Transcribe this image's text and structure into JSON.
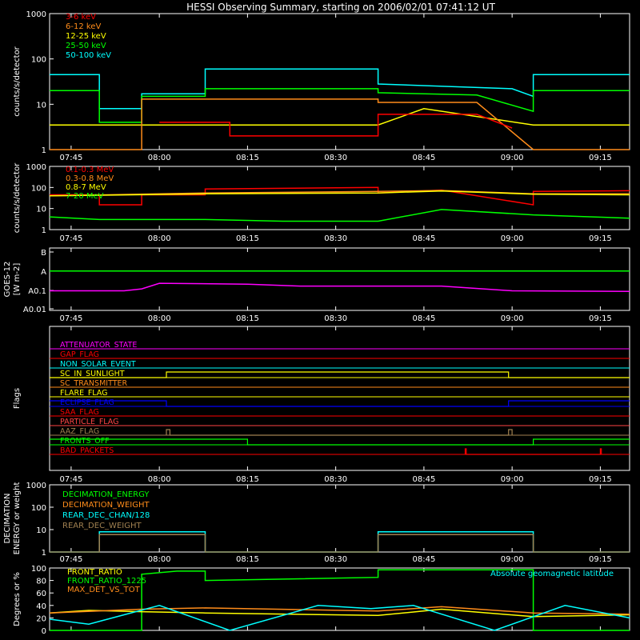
{
  "title": "HESSI Observing Summary, starting on 2006/02/01 07:41:12 UT",
  "time_ticks": [
    "07:45",
    "08:00",
    "08:15",
    "08:30",
    "08:45",
    "09:00",
    "09:15"
  ],
  "chart_data": [
    {
      "id": "lowE",
      "type": "line",
      "ylabel": "counts/s/detector",
      "yscale": "log",
      "ylim": [
        1,
        1000
      ],
      "ytick_labels": [
        "1",
        "10",
        "100",
        "1000"
      ],
      "legend": [
        {
          "name": "3-6 keV",
          "color": "#ff0000"
        },
        {
          "name": "6-12 keV",
          "color": "#ff8c1a"
        },
        {
          "name": "12-25 keV",
          "color": "#ffff00"
        },
        {
          "name": "25-50 keV",
          "color": "#00ff00"
        },
        {
          "name": "50-100 keV",
          "color": "#00ffff"
        }
      ],
      "series": [
        {
          "name": "50-100 keV",
          "color": "#00ffff",
          "x": [
            7.689,
            7.83,
            7.83,
            7.95,
            7.95,
            8.13,
            8.13,
            8.62,
            8.62,
            9.0,
            9.06,
            9.06,
            9.333
          ],
          "y": [
            45,
            45,
            8,
            8,
            17,
            17,
            60,
            60,
            28,
            22,
            15,
            45,
            45
          ]
        },
        {
          "name": "25-50 keV",
          "color": "#00ff00",
          "x": [
            7.689,
            7.83,
            7.83,
            7.95,
            7.95,
            8.13,
            8.13,
            8.62,
            8.62,
            8.9,
            9.06,
            9.06,
            9.333
          ],
          "y": [
            20,
            20,
            4,
            4,
            15,
            15,
            22,
            22,
            18,
            16,
            7,
            20,
            20
          ]
        },
        {
          "name": "12-25 keV",
          "color": "#ffff00",
          "x": [
            7.689,
            7.79,
            7.79,
            8.62,
            8.75,
            9.06,
            9.333
          ],
          "y": [
            3.5,
            3.5,
            3.5,
            3.5,
            8,
            3.5,
            3.5
          ]
        },
        {
          "name": "6-12 keV",
          "color": "#ff8c1a",
          "x": [
            7.689,
            7.83,
            7.83,
            7.95,
            7.95,
            8.13,
            8.13,
            8.62,
            8.62,
            8.9,
            9.06,
            9.06,
            9.333
          ],
          "y": [
            1,
            1,
            1,
            1,
            13,
            13,
            13,
            13,
            11,
            11,
            1,
            1,
            1
          ]
        },
        {
          "name": "3-6 keV",
          "color": "#ff0000",
          "x": [
            8.0,
            8.2,
            8.2,
            8.62,
            8.62,
            8.9,
            9.0
          ],
          "y": [
            4,
            4,
            2,
            2,
            6,
            6,
            3
          ]
        }
      ]
    },
    {
      "id": "highE",
      "type": "line",
      "ylabel": "counts/s/detector",
      "yscale": "log",
      "ylim": [
        1,
        1000
      ],
      "ytick_labels": [
        "1",
        "10",
        "100",
        "1000"
      ],
      "legend": [
        {
          "name": "0.1-0.3 MeV",
          "color": "#ff0000"
        },
        {
          "name": "0.3-0.8 MeV",
          "color": "#ff8c1a"
        },
        {
          "name": "0.8-7 MeV",
          "color": "#ffff00"
        },
        {
          "name": "7-20 MeV",
          "color": "#00ff00"
        }
      ],
      "series": [
        {
          "name": "0.1-0.3 MeV",
          "color": "#ff0000",
          "x": [
            7.689,
            7.83,
            7.83,
            7.95,
            7.95,
            8.13,
            8.13,
            8.62,
            8.62,
            8.8,
            9.06,
            9.06,
            9.333
          ],
          "y": [
            45,
            45,
            15,
            15,
            45,
            45,
            85,
            100,
            55,
            75,
            15,
            65,
            70
          ]
        },
        {
          "name": "0.3-0.8 MeV",
          "color": "#ff8c1a",
          "x": [
            7.689,
            8.13,
            8.62,
            8.8,
            9.06,
            9.333
          ],
          "y": [
            40,
            55,
            65,
            72,
            50,
            50
          ]
        },
        {
          "name": "0.8-7 MeV",
          "color": "#ffff00",
          "x": [
            7.689,
            8.13,
            8.62,
            8.8,
            9.06,
            9.333
          ],
          "y": [
            40,
            50,
            55,
            68,
            48,
            45
          ]
        },
        {
          "name": "7-20 MeV",
          "color": "#00ff00",
          "x": [
            7.689,
            7.83,
            8.13,
            8.35,
            8.62,
            8.8,
            9.06,
            9.333
          ],
          "y": [
            4,
            3,
            3,
            2.5,
            2.5,
            9,
            5,
            3.5
          ]
        }
      ]
    },
    {
      "id": "goes",
      "type": "line",
      "ylabel": "GOES-12",
      "ylabel2": "[W m-2]",
      "ytick_labels": [
        "B",
        "A",
        "A0.1",
        "A0.01"
      ],
      "series": [
        {
          "name": "goes-long",
          "color": "#00ff00",
          "x": [
            7.689,
            9.333
          ],
          "y": [
            2.0,
            2.0
          ]
        },
        {
          "name": "goes-short",
          "color": "#ff00ff",
          "x": [
            7.689,
            7.9,
            7.95,
            8.0,
            8.25,
            8.4,
            8.8,
            9.0,
            9.333
          ],
          "y": [
            0.95,
            0.95,
            1.05,
            1.35,
            1.3,
            1.2,
            1.2,
            0.95,
            0.92
          ]
        }
      ]
    },
    {
      "id": "flags",
      "type": "line",
      "ylabel": "Flags",
      "legend": [
        {
          "name": "ATTENUATOR_STATE",
          "color": "#ff00ff"
        },
        {
          "name": "GAP_FLAG",
          "color": "#ff0000"
        },
        {
          "name": "NON_SOLAR_EVENT",
          "color": "#00ffff"
        },
        {
          "name": "SC_IN_SUNLIGHT",
          "color": "#ffff00"
        },
        {
          "name": "SC_TRANSMITTER",
          "color": "#ff8c1a"
        },
        {
          "name": "FLARE_FLAG",
          "color": "#ffff00"
        },
        {
          "name": "ECLIPSE_FLAG",
          "color": "#0000ff"
        },
        {
          "name": "SAA_FLAG",
          "color": "#ff0000"
        },
        {
          "name": "PARTICLE_FLAG",
          "color": "#ff4444"
        },
        {
          "name": "AAZ_FLAG",
          "color": "#a08050"
        },
        {
          "name": "FRONTS_OFF",
          "color": "#00ff00"
        },
        {
          "name": "BAD_PACKETS",
          "color": "#ff0000"
        }
      ],
      "series": [
        {
          "name": "SC_IN_SUNLIGHT",
          "color": "#ffff00",
          "x": [
            7.689,
            8.02,
            8.02,
            8.99,
            8.99,
            9.333
          ],
          "y": [
            0,
            0,
            1,
            1,
            0,
            0
          ]
        },
        {
          "name": "ECLIPSE_FLAG",
          "color": "#0000ff",
          "x": [
            7.689,
            8.02,
            8.02,
            8.99,
            8.99,
            9.333
          ],
          "y": [
            1,
            1,
            0,
            0,
            1,
            1
          ]
        },
        {
          "name": "FRONTS_OFF",
          "color": "#00ff00",
          "x": [
            7.689,
            8.25,
            8.25,
            9.06,
            9.06,
            9.333
          ],
          "y": [
            1,
            1,
            0,
            0,
            1,
            1
          ]
        },
        {
          "name": "AAZ_FLAG",
          "color": "#a08050",
          "x": [
            8.02,
            8.02,
            8.03,
            8.03,
            8.99,
            8.99,
            9.0,
            9.0
          ],
          "y": [
            0,
            1,
            1,
            0,
            0,
            1,
            1,
            0
          ]
        },
        {
          "name": "BAD_PACKETS",
          "color": "#ff0000",
          "x": [
            8.867,
            8.867,
            8.87,
            8.87,
            9.25,
            9.25,
            9.253,
            9.253
          ],
          "y": [
            0,
            1,
            1,
            0,
            0,
            1,
            1,
            0
          ]
        }
      ]
    },
    {
      "id": "decim",
      "type": "line",
      "ylabel": "DECIMATION",
      "ylabel2": "ENERGY or weight",
      "yscale": "log",
      "ylim": [
        1,
        1000
      ],
      "ytick_labels": [
        "1",
        "10",
        "100",
        "1000"
      ],
      "legend": [
        {
          "name": "DECIMATION_ENERGY",
          "color": "#00ff00"
        },
        {
          "name": "DECIMATION_WEIGHT",
          "color": "#ff8c1a"
        },
        {
          "name": "REAR_DEC_CHAN/128",
          "color": "#00ffff"
        },
        {
          "name": "REAR_DEC_WEIGHT",
          "color": "#a08050"
        }
      ],
      "series": [
        {
          "name": "REAR_DEC_CHAN/128",
          "color": "#00ffff",
          "x": [
            7.689,
            7.83,
            7.83,
            8.13,
            8.13,
            8.62,
            8.62,
            9.06,
            9.06,
            9.333
          ],
          "y": [
            1,
            1,
            8,
            8,
            1,
            1,
            8,
            8,
            1,
            1
          ]
        },
        {
          "name": "REAR_DEC_WEIGHT",
          "color": "#a08050",
          "x": [
            7.689,
            7.83,
            7.83,
            8.13,
            8.13,
            8.62,
            8.62,
            9.06,
            9.06,
            9.333
          ],
          "y": [
            1,
            1,
            6,
            6,
            1,
            1,
            6,
            6,
            1,
            1
          ]
        }
      ]
    },
    {
      "id": "ratio",
      "type": "line",
      "ylabel": "Degrees or %",
      "ylim": [
        0,
        100
      ],
      "ytick_labels": [
        "0",
        "20",
        "40",
        "60",
        "80",
        "100"
      ],
      "annotation": "Absolute geomagnetic latitude",
      "legend": [
        {
          "name": "FRONT_RATIO",
          "color": "#ffff00"
        },
        {
          "name": "FRONT_RATIO_1225",
          "color": "#00ff00"
        },
        {
          "name": "MAX_DET_VS_TOT",
          "color": "#ff8c1a"
        }
      ],
      "series": [
        {
          "name": "FRONT_RATIO_1225",
          "color": "#00ff00",
          "x": [
            7.689,
            7.95,
            7.95,
            8.05,
            8.13,
            8.13,
            8.62,
            8.62,
            9.06,
            9.06,
            9.333
          ],
          "y": [
            0,
            0,
            90,
            95,
            95,
            80,
            85,
            97,
            97,
            0,
            0
          ]
        },
        {
          "name": "FRONT_RATIO",
          "color": "#ffff00",
          "x": [
            7.689,
            7.8,
            7.95,
            8.13,
            8.62,
            8.8,
            9.06,
            9.333
          ],
          "y": [
            28,
            32,
            30,
            28,
            24,
            34,
            22,
            25
          ]
        },
        {
          "name": "MAX_DET_VS_TOT",
          "color": "#ff8c1a",
          "x": [
            7.689,
            7.95,
            8.13,
            8.62,
            8.8,
            9.06,
            9.333
          ],
          "y": [
            28,
            34,
            36,
            31,
            38,
            28,
            26
          ]
        },
        {
          "name": "Absolute geomagnetic latitude",
          "color": "#00ffff",
          "x": [
            7.689,
            7.8,
            8.0,
            8.2,
            8.45,
            8.6,
            8.72,
            8.95,
            9.15,
            9.333
          ],
          "y": [
            18,
            10,
            40,
            0,
            40,
            35,
            40,
            0,
            40,
            20
          ]
        }
      ]
    }
  ]
}
